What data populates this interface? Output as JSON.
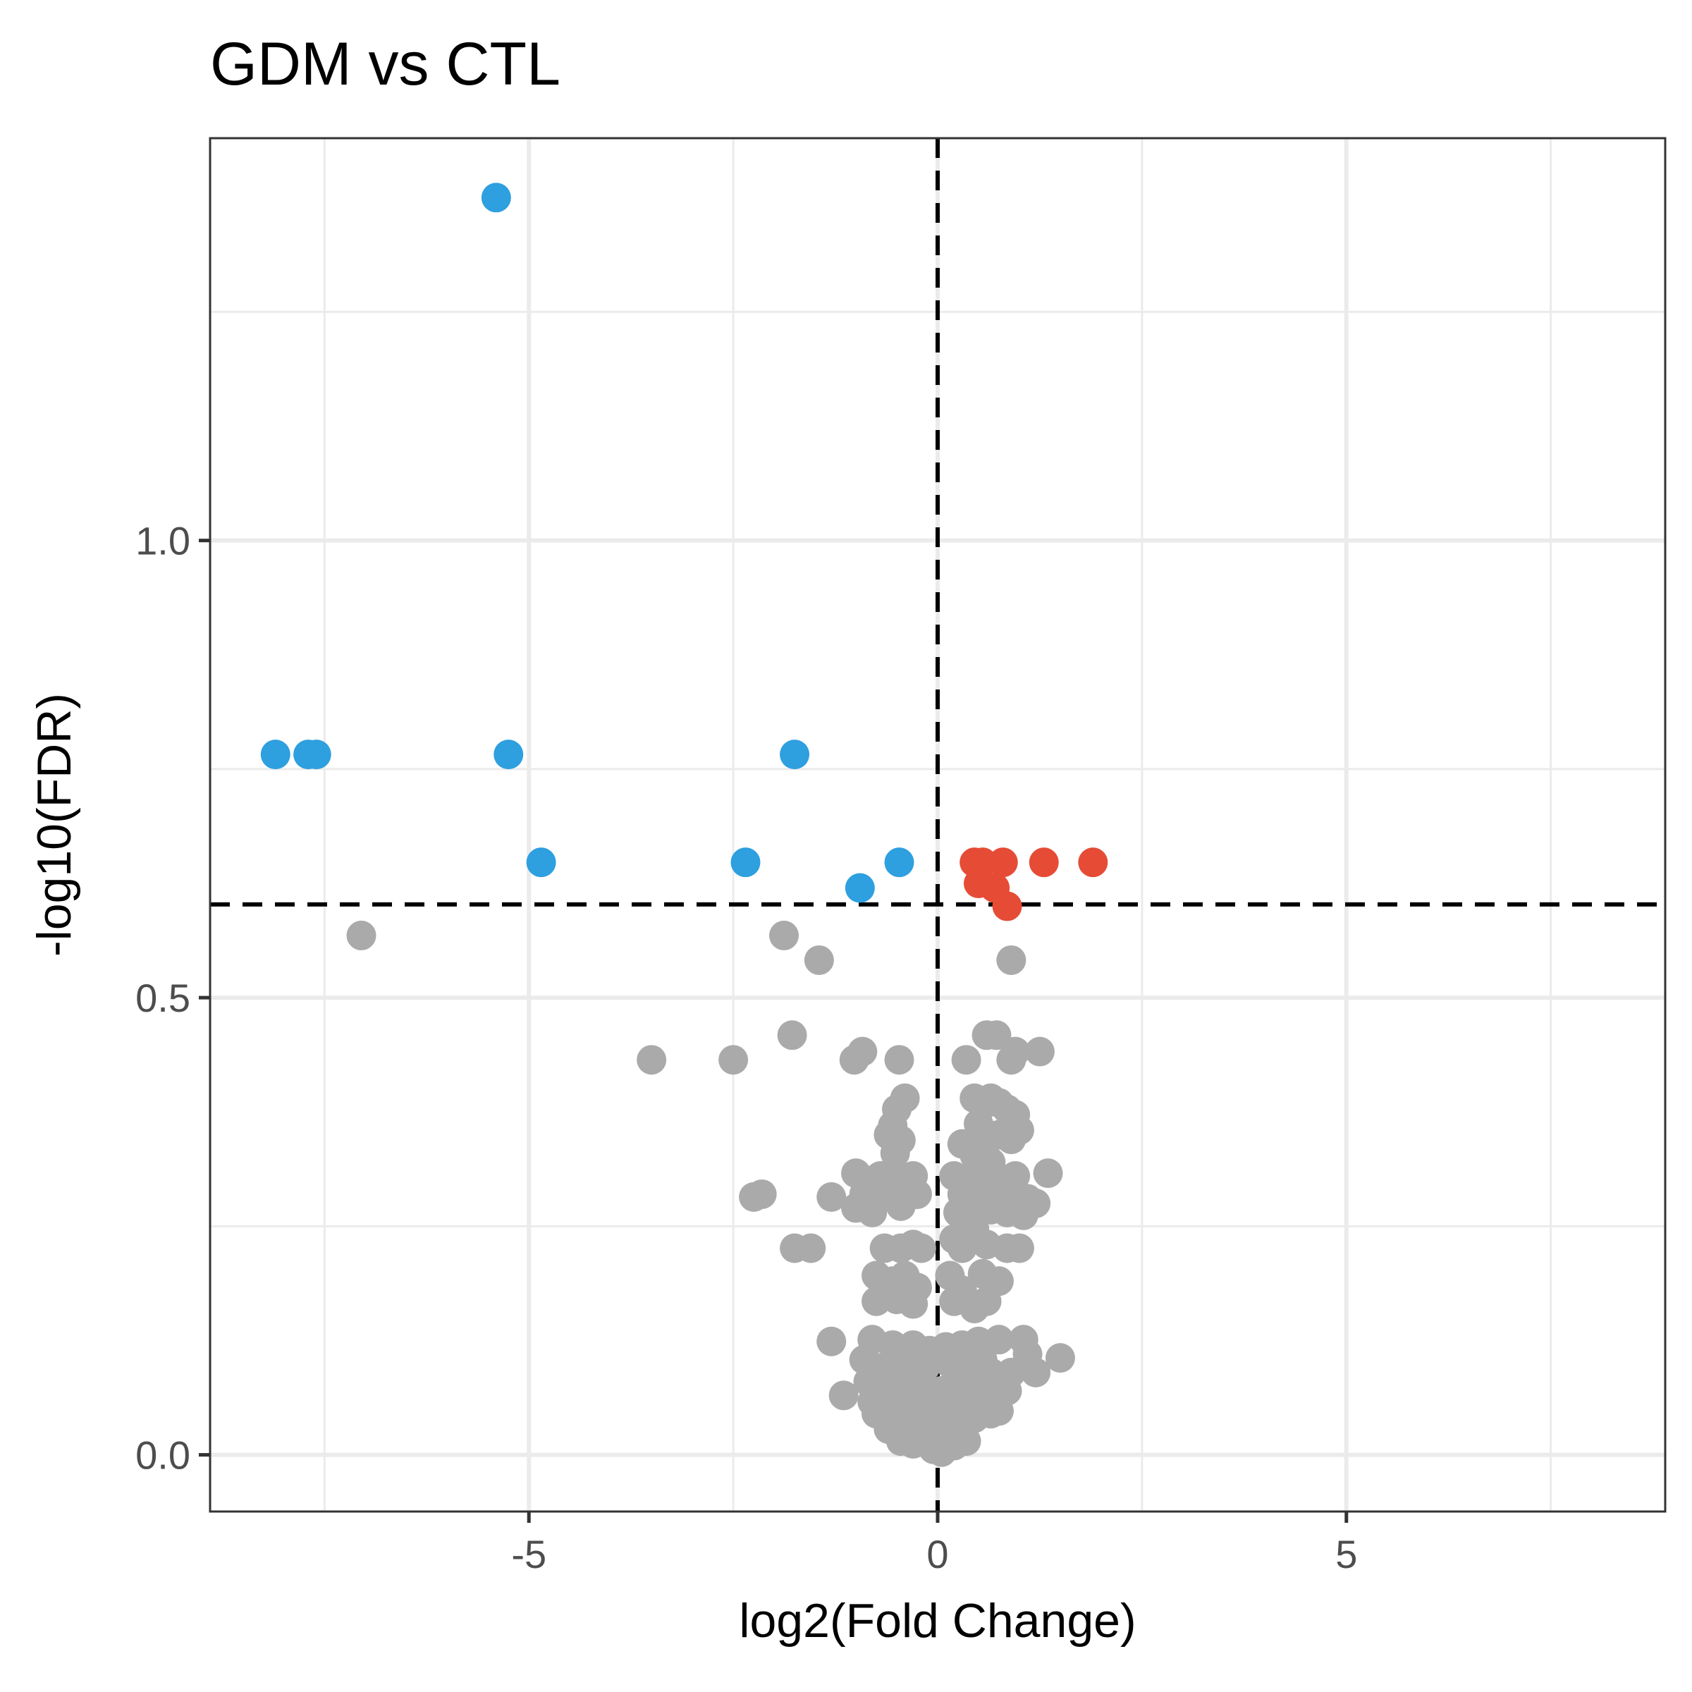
{
  "chart_data": {
    "type": "scatter",
    "title": "GDM vs CTL",
    "xlabel": "log2(Fold Change)",
    "ylabel": "-log10(FDR)",
    "xlim": [
      -8.9,
      8.9
    ],
    "ylim": [
      -0.062,
      1.44
    ],
    "x_ticks": [
      -5,
      0,
      5
    ],
    "x_tick_labels": [
      "-5",
      "0",
      "5"
    ],
    "y_ticks": [
      0.0,
      0.5,
      1.0
    ],
    "y_tick_labels": [
      "0.0",
      "0.5",
      "1.0"
    ],
    "grid": true,
    "thresholds": {
      "x": 0,
      "y": 0.602
    },
    "colors": {
      "down": "#2e9fdf",
      "up": "#e64b35",
      "ns": "#aaaaaa"
    },
    "series": [
      {
        "group": "down",
        "points": [
          [
            -5.4,
            1.375
          ],
          [
            -8.1,
            0.766
          ],
          [
            -7.7,
            0.766
          ],
          [
            -7.6,
            0.766
          ],
          [
            -5.25,
            0.766
          ],
          [
            -1.75,
            0.766
          ],
          [
            -4.85,
            0.648
          ],
          [
            -2.35,
            0.648
          ],
          [
            -0.47,
            0.648
          ],
          [
            -0.95,
            0.62
          ]
        ]
      },
      {
        "group": "up",
        "points": [
          [
            0.45,
            0.648
          ],
          [
            0.55,
            0.648
          ],
          [
            0.8,
            0.648
          ],
          [
            1.3,
            0.648
          ],
          [
            1.9,
            0.648
          ],
          [
            0.5,
            0.625
          ],
          [
            0.7,
            0.62
          ],
          [
            0.85,
            0.6
          ]
        ]
      },
      {
        "group": "ns",
        "points": [
          [
            -7.05,
            0.568
          ],
          [
            -1.88,
            0.568
          ],
          [
            -1.45,
            0.541
          ],
          [
            0.9,
            0.541
          ],
          [
            -1.78,
            0.459
          ],
          [
            -3.5,
            0.432
          ],
          [
            -2.5,
            0.432
          ],
          [
            -0.92,
            0.441
          ],
          [
            -1.02,
            0.432
          ],
          [
            -0.47,
            0.432
          ],
          [
            0.35,
            0.432
          ],
          [
            0.6,
            0.459
          ],
          [
            0.72,
            0.459
          ],
          [
            0.9,
            0.432
          ],
          [
            0.95,
            0.441
          ],
          [
            1.25,
            0.441
          ],
          [
            -0.4,
            0.39
          ],
          [
            -0.5,
            0.378
          ],
          [
            -0.55,
            0.36
          ],
          [
            -0.6,
            0.35
          ],
          [
            -0.45,
            0.344
          ],
          [
            -0.52,
            0.33
          ],
          [
            -0.55,
            0.31
          ],
          [
            -0.42,
            0.3
          ],
          [
            0.45,
            0.39
          ],
          [
            0.55,
            0.382
          ],
          [
            0.65,
            0.39
          ],
          [
            0.75,
            0.385
          ],
          [
            0.85,
            0.378
          ],
          [
            0.95,
            0.372
          ],
          [
            0.5,
            0.362
          ],
          [
            0.6,
            0.35
          ],
          [
            0.75,
            0.35
          ],
          [
            0.9,
            0.345
          ],
          [
            1.0,
            0.355
          ],
          [
            0.3,
            0.34
          ],
          [
            0.45,
            0.328
          ],
          [
            0.65,
            0.32
          ],
          [
            -1.0,
            0.308
          ],
          [
            -0.85,
            0.3
          ],
          [
            -0.7,
            0.305
          ],
          [
            -0.5,
            0.297
          ],
          [
            -0.3,
            0.305
          ],
          [
            -0.9,
            0.285
          ],
          [
            -0.6,
            0.282
          ],
          [
            -0.25,
            0.285
          ],
          [
            -1.3,
            0.282
          ],
          [
            -1.0,
            0.27
          ],
          [
            -0.8,
            0.265
          ],
          [
            -0.45,
            0.272
          ],
          [
            0.2,
            0.305
          ],
          [
            0.4,
            0.3
          ],
          [
            0.6,
            0.305
          ],
          [
            0.8,
            0.3
          ],
          [
            0.95,
            0.305
          ],
          [
            0.3,
            0.285
          ],
          [
            0.5,
            0.278
          ],
          [
            0.7,
            0.285
          ],
          [
            0.9,
            0.282
          ],
          [
            1.1,
            0.28
          ],
          [
            1.35,
            0.308
          ],
          [
            0.25,
            0.265
          ],
          [
            0.45,
            0.262
          ],
          [
            0.65,
            0.268
          ],
          [
            0.85,
            0.265
          ],
          [
            1.05,
            0.262
          ],
          [
            1.2,
            0.275
          ],
          [
            -2.25,
            0.282
          ],
          [
            -2.15,
            0.285
          ],
          [
            -1.75,
            0.226
          ],
          [
            -1.55,
            0.226
          ],
          [
            -0.65,
            0.226
          ],
          [
            -0.45,
            0.226
          ],
          [
            -0.3,
            0.23
          ],
          [
            -0.2,
            0.226
          ],
          [
            0.2,
            0.236
          ],
          [
            0.3,
            0.226
          ],
          [
            0.45,
            0.247
          ],
          [
            0.6,
            0.23
          ],
          [
            0.85,
            0.226
          ],
          [
            1.0,
            0.226
          ],
          [
            -0.75,
            0.196
          ],
          [
            -0.55,
            0.19
          ],
          [
            -0.4,
            0.196
          ],
          [
            -0.25,
            0.183
          ],
          [
            -0.75,
            0.168
          ],
          [
            -0.5,
            0.17
          ],
          [
            -0.3,
            0.165
          ],
          [
            0.15,
            0.196
          ],
          [
            0.3,
            0.18
          ],
          [
            0.55,
            0.198
          ],
          [
            0.75,
            0.19
          ],
          [
            0.2,
            0.168
          ],
          [
            0.45,
            0.16
          ],
          [
            0.6,
            0.168
          ],
          [
            -1.3,
            0.124
          ],
          [
            -0.8,
            0.126
          ],
          [
            -0.55,
            0.12
          ],
          [
            -0.3,
            0.12
          ],
          [
            -0.1,
            0.114
          ],
          [
            0.1,
            0.118
          ],
          [
            0.3,
            0.12
          ],
          [
            0.5,
            0.124
          ],
          [
            0.75,
            0.126
          ],
          [
            1.05,
            0.126
          ],
          [
            1.1,
            0.11
          ],
          [
            1.5,
            0.106
          ],
          [
            1.2,
            0.09
          ],
          [
            0.9,
            0.09
          ],
          [
            -0.9,
            0.104
          ],
          [
            -0.7,
            0.095
          ],
          [
            -0.5,
            0.1
          ],
          [
            -0.3,
            0.09
          ],
          [
            -0.15,
            0.096
          ],
          [
            0.15,
            0.1
          ],
          [
            0.35,
            0.095
          ],
          [
            0.55,
            0.104
          ],
          [
            0.65,
            0.09
          ],
          [
            -0.85,
            0.08
          ],
          [
            -0.6,
            0.075
          ],
          [
            -0.4,
            0.07
          ],
          [
            -0.2,
            0.074
          ],
          [
            0.05,
            0.07
          ],
          [
            0.25,
            0.076
          ],
          [
            0.45,
            0.07
          ],
          [
            0.65,
            0.078
          ],
          [
            0.85,
            0.07
          ],
          [
            -1.15,
            0.065
          ],
          [
            -0.8,
            0.058
          ],
          [
            -0.55,
            0.055
          ],
          [
            -0.35,
            0.05
          ],
          [
            -0.1,
            0.054
          ],
          [
            0.15,
            0.05
          ],
          [
            0.35,
            0.056
          ],
          [
            0.55,
            0.052
          ],
          [
            0.75,
            0.048
          ],
          [
            -0.75,
            0.045
          ],
          [
            -0.5,
            0.04
          ],
          [
            -0.25,
            0.035
          ],
          [
            0.0,
            0.04
          ],
          [
            0.2,
            0.036
          ],
          [
            0.45,
            0.04
          ],
          [
            0.65,
            0.045
          ],
          [
            -0.6,
            0.028
          ],
          [
            -0.35,
            0.022
          ],
          [
            -0.15,
            0.018
          ],
          [
            0.1,
            0.02
          ],
          [
            0.25,
            0.026
          ],
          [
            -0.3,
            0.012
          ],
          [
            -0.05,
            0.006
          ],
          [
            0.05,
            0.003
          ],
          [
            0.2,
            0.01
          ],
          [
            -0.45,
            0.015
          ],
          [
            0.35,
            0.015
          ],
          [
            0.2,
            0.012
          ]
        ]
      }
    ]
  }
}
